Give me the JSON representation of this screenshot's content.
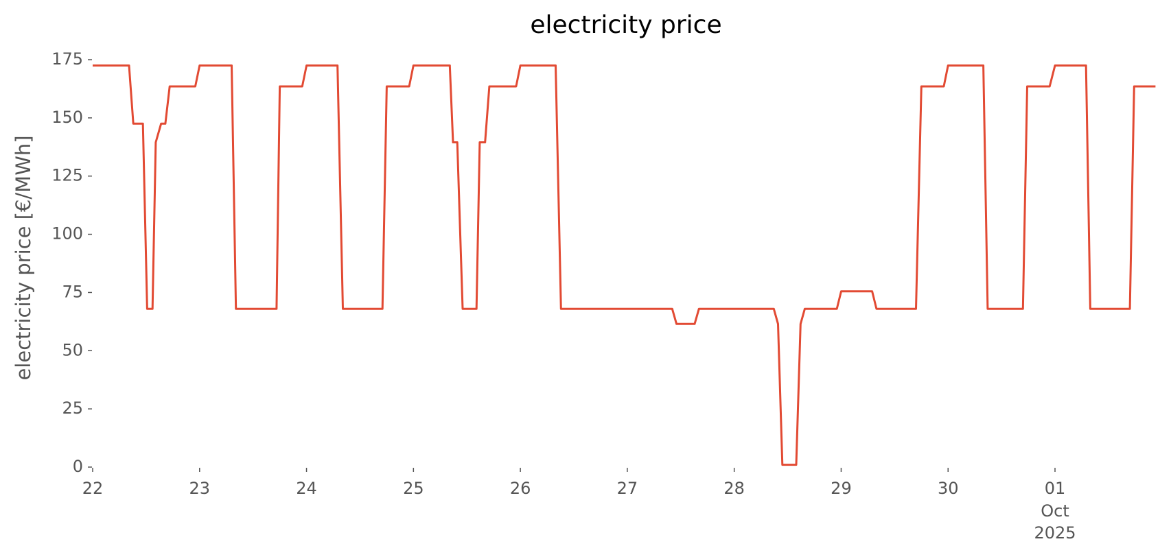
{
  "chart_data": {
    "type": "line",
    "title": "electricity price",
    "ylabel": "electricity price [€/MWh]",
    "x": [
      22.0,
      22.34,
      22.38,
      22.47,
      22.51,
      22.56,
      22.59,
      22.64,
      22.68,
      22.72,
      22.96,
      23.0,
      23.3,
      23.34,
      23.72,
      23.75,
      23.96,
      24.0,
      24.29,
      24.34,
      24.71,
      24.75,
      24.96,
      25.0,
      25.34,
      25.37,
      25.41,
      25.46,
      25.59,
      25.62,
      25.67,
      25.71,
      25.96,
      26.0,
      26.33,
      26.38,
      27.42,
      27.46,
      27.63,
      27.67,
      28.37,
      28.41,
      28.45,
      28.58,
      28.62,
      28.66,
      28.96,
      29.0,
      29.29,
      29.33,
      29.7,
      29.75,
      29.96,
      30.0,
      30.33,
      30.37,
      30.7,
      30.74,
      30.95,
      31.0,
      31.29,
      31.33,
      31.7,
      31.74,
      31.94
    ],
    "values": [
      172.5,
      172.5,
      147.5,
      147.5,
      68,
      68,
      139.5,
      147.5,
      147.5,
      163.5,
      163.5,
      172.5,
      172.5,
      68,
      68,
      163.5,
      163.5,
      172.5,
      172.5,
      68,
      68,
      163.5,
      163.5,
      172.5,
      172.5,
      139.5,
      139.5,
      68,
      68,
      139.5,
      139.5,
      163.5,
      163.5,
      172.5,
      172.5,
      68,
      68,
      61.5,
      61.5,
      68,
      68,
      61.5,
      1,
      1,
      61.5,
      68,
      68,
      75.5,
      75.5,
      68,
      68,
      163.5,
      163.5,
      172.5,
      172.5,
      68,
      68,
      163.5,
      163.5,
      172.5,
      172.5,
      68,
      68,
      163.5,
      163.5
    ],
    "color": "#e24a33",
    "xlim": [
      22,
      31.95
    ],
    "xticks": [
      22,
      23,
      24,
      25,
      26,
      27,
      28,
      29,
      30,
      {
        "value": 31,
        "label": "01"
      }
    ],
    "x_sublabels": [
      "Oct",
      "2025"
    ],
    "ylim": [
      0,
      175
    ],
    "yticks": [
      0,
      25,
      50,
      75,
      100,
      125,
      150,
      175
    ],
    "grid": false
  }
}
